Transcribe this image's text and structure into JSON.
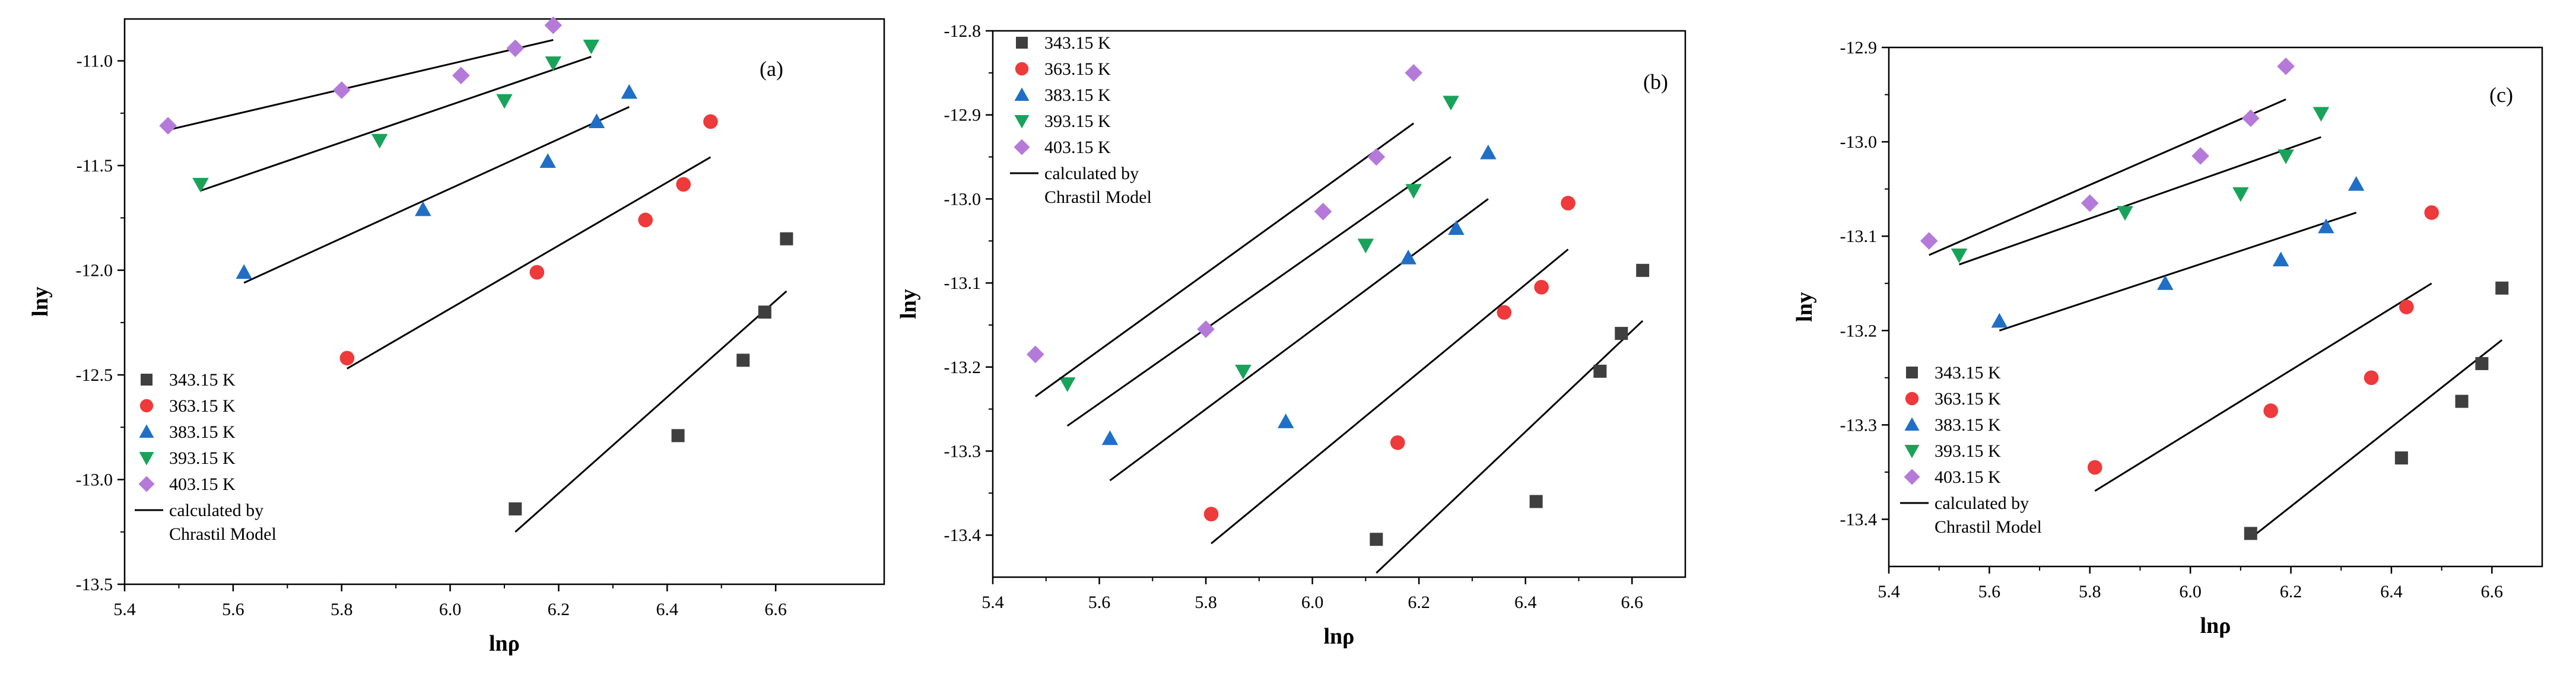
{
  "chart_data": [
    {
      "type": "scatter",
      "panel_label": "(a)",
      "xlabel": "lnρ",
      "ylabel": "lny",
      "xlim": [
        5.4,
        6.8
      ],
      "ylim": [
        -13.5,
        -10.8
      ],
      "xticks": [
        5.4,
        5.6,
        5.8,
        6.0,
        6.2,
        6.4,
        6.6
      ],
      "xtick_labels": [
        "5.4",
        "5.6",
        "5.8",
        "6.0",
        "6.2",
        "6.4",
        "6.6"
      ],
      "yticks": [
        -13.5,
        -13.0,
        -12.5,
        -12.0,
        -11.5,
        -11.0
      ],
      "ytick_labels": [
        "-13.5",
        "-13.0",
        "-12.5",
        "-12.0",
        "-11.5",
        "-11.0"
      ],
      "legend_position": "bottom-left",
      "series": [
        {
          "name": "343.15 K",
          "marker": "square",
          "color": "#3f3f3f",
          "points": [
            [
              6.12,
              -13.14
            ],
            [
              6.42,
              -12.79
            ],
            [
              6.54,
              -12.43
            ],
            [
              6.58,
              -12.2
            ],
            [
              6.62,
              -11.85
            ]
          ],
          "fit": [
            [
              6.12,
              -13.25
            ],
            [
              6.62,
              -12.1
            ]
          ]
        },
        {
          "name": "363.15 K",
          "marker": "circle",
          "color": "#ee3a3a",
          "points": [
            [
              5.81,
              -12.42
            ],
            [
              6.16,
              -12.01
            ],
            [
              6.36,
              -11.76
            ],
            [
              6.43,
              -11.59
            ],
            [
              6.48,
              -11.29
            ]
          ],
          "fit": [
            [
              5.81,
              -12.47
            ],
            [
              6.48,
              -11.46
            ]
          ]
        },
        {
          "name": "383.15 K",
          "marker": "triangle-up",
          "color": "#1f6fc7",
          "points": [
            [
              5.62,
              -12.01
            ],
            [
              5.95,
              -11.71
            ],
            [
              6.18,
              -11.48
            ],
            [
              6.27,
              -11.29
            ],
            [
              6.33,
              -11.15
            ]
          ],
          "fit": [
            [
              5.62,
              -12.06
            ],
            [
              6.33,
              -11.22
            ]
          ]
        },
        {
          "name": "393.15 K",
          "marker": "triangle-down",
          "color": "#19a35a",
          "points": [
            [
              5.54,
              -11.59
            ],
            [
              5.87,
              -11.38
            ],
            [
              6.1,
              -11.19
            ],
            [
              6.19,
              -11.01
            ],
            [
              6.26,
              -10.93
            ]
          ],
          "fit": [
            [
              5.54,
              -11.62
            ],
            [
              6.26,
              -10.98
            ]
          ]
        },
        {
          "name": "403.15 K",
          "marker": "diamond",
          "color": "#b57ad9",
          "points": [
            [
              5.48,
              -11.31
            ],
            [
              5.8,
              -11.14
            ],
            [
              6.02,
              -11.07
            ],
            [
              6.12,
              -10.94
            ],
            [
              6.19,
              -10.83
            ]
          ],
          "fit": [
            [
              5.48,
              -11.33
            ],
            [
              6.19,
              -10.9
            ]
          ]
        }
      ],
      "fit_label": "calculated by Chrastil Model"
    },
    {
      "type": "scatter",
      "panel_label": "(b)",
      "xlabel": "lnρ",
      "ylabel": "lny",
      "xlim": [
        5.4,
        6.7
      ],
      "ylim": [
        -13.45,
        -12.8
      ],
      "xticks": [
        5.4,
        5.6,
        5.8,
        6.0,
        6.2,
        6.4,
        6.6
      ],
      "xtick_labels": [
        "5.4",
        "5.6",
        "5.8",
        "6.0",
        "6.2",
        "6.4",
        "6.6"
      ],
      "yticks": [
        -13.4,
        -13.3,
        -13.2,
        -13.1,
        -13.0,
        -12.9,
        -12.8
      ],
      "ytick_labels": [
        "-13.4",
        "-13.3",
        "-13.2",
        "-13.1",
        "-13.0",
        "-12.9",
        "-12.8"
      ],
      "legend_position": "top-left",
      "series": [
        {
          "name": "343.15 K",
          "marker": "square",
          "color": "#3f3f3f",
          "points": [
            [
              6.12,
              -13.405
            ],
            [
              6.42,
              -13.36
            ],
            [
              6.54,
              -13.205
            ],
            [
              6.58,
              -13.16
            ],
            [
              6.62,
              -13.085
            ]
          ],
          "fit": [
            [
              6.12,
              -13.445
            ],
            [
              6.62,
              -13.145
            ]
          ]
        },
        {
          "name": "363.15 K",
          "marker": "circle",
          "color": "#ee3a3a",
          "points": [
            [
              5.81,
              -13.375
            ],
            [
              6.16,
              -13.29
            ],
            [
              6.36,
              -13.135
            ],
            [
              6.43,
              -13.105
            ],
            [
              6.48,
              -13.005
            ]
          ],
          "fit": [
            [
              5.81,
              -13.41
            ],
            [
              6.48,
              -13.06
            ]
          ]
        },
        {
          "name": "383.15 K",
          "marker": "triangle-up",
          "color": "#1f6fc7",
          "points": [
            [
              5.62,
              -13.285
            ],
            [
              5.95,
              -13.265
            ],
            [
              6.18,
              -13.07
            ],
            [
              6.27,
              -13.035
            ],
            [
              6.33,
              -12.945
            ]
          ],
          "fit": [
            [
              5.62,
              -13.335
            ],
            [
              6.33,
              -13.0
            ]
          ]
        },
        {
          "name": "393.15 K",
          "marker": "triangle-down",
          "color": "#19a35a",
          "points": [
            [
              5.54,
              -13.22
            ],
            [
              5.87,
              -13.205
            ],
            [
              6.1,
              -13.055
            ],
            [
              6.19,
              -12.99
            ],
            [
              6.26,
              -12.885
            ]
          ],
          "fit": [
            [
              5.54,
              -13.27
            ],
            [
              6.26,
              -12.95
            ]
          ]
        },
        {
          "name": "403.15 K",
          "marker": "diamond",
          "color": "#b57ad9",
          "points": [
            [
              5.48,
              -13.185
            ],
            [
              5.8,
              -13.155
            ],
            [
              6.02,
              -13.015
            ],
            [
              6.12,
              -12.95
            ],
            [
              6.19,
              -12.85
            ]
          ],
          "fit": [
            [
              5.48,
              -13.235
            ],
            [
              6.19,
              -12.91
            ]
          ]
        }
      ],
      "fit_label": "calculated by Chrastil Model"
    },
    {
      "type": "scatter",
      "panel_label": "(c)",
      "xlabel": "lnρ",
      "ylabel": "lny",
      "xlim": [
        5.4,
        6.7
      ],
      "ylim": [
        -13.45,
        -12.9
      ],
      "xticks": [
        5.4,
        5.6,
        5.8,
        6.0,
        6.2,
        6.4,
        6.6
      ],
      "xtick_labels": [
        "5.4",
        "5.6",
        "5.8",
        "6.0",
        "6.2",
        "6.4",
        "6.6"
      ],
      "yticks": [
        -13.4,
        -13.3,
        -13.2,
        -13.1,
        -13.0,
        -12.9
      ],
      "ytick_labels": [
        "-13.4",
        "-13.3",
        "-13.2",
        "-13.1",
        "-13.0",
        "-12.9"
      ],
      "legend_position": "bottom-left",
      "series": [
        {
          "name": "343.15 K",
          "marker": "square",
          "color": "#3f3f3f",
          "points": [
            [
              6.12,
              -13.415
            ],
            [
              6.42,
              -13.335
            ],
            [
              6.54,
              -13.275
            ],
            [
              6.58,
              -13.235
            ],
            [
              6.62,
              -13.155
            ]
          ],
          "fit": [
            [
              6.12,
              -13.42
            ],
            [
              6.62,
              -13.21
            ]
          ]
        },
        {
          "name": "363.15 K",
          "marker": "circle",
          "color": "#ee3a3a",
          "points": [
            [
              5.81,
              -13.345
            ],
            [
              6.16,
              -13.285
            ],
            [
              6.36,
              -13.25
            ],
            [
              6.43,
              -13.175
            ],
            [
              6.48,
              -13.075
            ]
          ],
          "fit": [
            [
              5.81,
              -13.37
            ],
            [
              6.48,
              -13.15
            ]
          ]
        },
        {
          "name": "383.15 K",
          "marker": "triangle-up",
          "color": "#1f6fc7",
          "points": [
            [
              5.62,
              -13.19
            ],
            [
              5.95,
              -13.15
            ],
            [
              6.18,
              -13.125
            ],
            [
              6.27,
              -13.09
            ],
            [
              6.33,
              -13.045
            ]
          ],
          "fit": [
            [
              5.62,
              -13.2
            ],
            [
              6.33,
              -13.075
            ]
          ]
        },
        {
          "name": "393.15 K",
          "marker": "triangle-down",
          "color": "#19a35a",
          "points": [
            [
              5.54,
              -13.12
            ],
            [
              5.87,
              -13.075
            ],
            [
              6.1,
              -13.055
            ],
            [
              6.19,
              -13.015
            ],
            [
              6.26,
              -12.97
            ]
          ],
          "fit": [
            [
              5.54,
              -13.13
            ],
            [
              6.26,
              -12.995
            ]
          ]
        },
        {
          "name": "403.15 K",
          "marker": "diamond",
          "color": "#b57ad9",
          "points": [
            [
              5.48,
              -13.105
            ],
            [
              5.8,
              -13.065
            ],
            [
              6.02,
              -13.015
            ],
            [
              6.12,
              -12.975
            ],
            [
              6.19,
              -12.92
            ]
          ],
          "fit": [
            [
              5.48,
              -13.12
            ],
            [
              6.19,
              -12.955
            ]
          ]
        }
      ],
      "fit_label": "calculated by Chrastil Model"
    }
  ]
}
